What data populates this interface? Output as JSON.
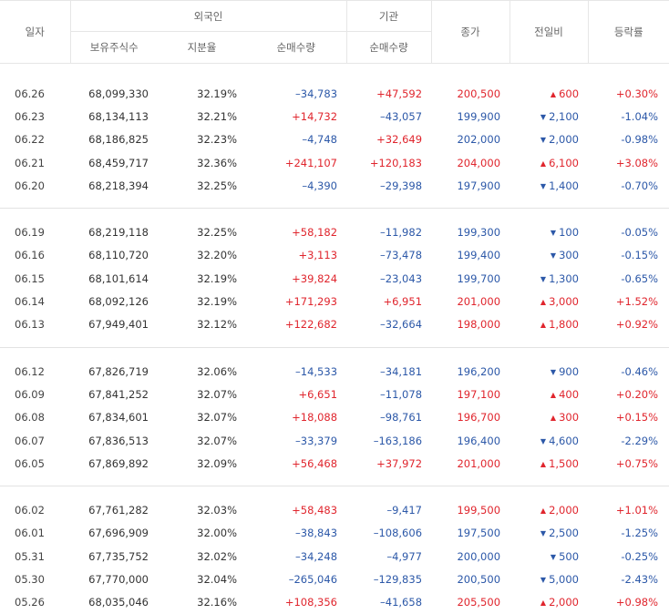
{
  "headers": {
    "date": "일자",
    "foreign": "외국인",
    "institution": "기관",
    "holdings": "보유주식수",
    "ratio": "지분율",
    "foreign_net": "순매수량",
    "inst_net": "순매수량",
    "close": "종가",
    "prev_diff": "전일비",
    "rate": "등락률"
  },
  "colors": {
    "up": "#e0252d",
    "down": "#2c58a8"
  },
  "groups": [
    [
      {
        "date": "06.26",
        "holdings": "68,099,330",
        "ratio": "32.19%",
        "fnet": "–34,783",
        "inet": "+47,592",
        "close": "200,500",
        "dir": "up",
        "diff": "600",
        "rate": "+0.30%"
      },
      {
        "date": "06.23",
        "holdings": "68,134,113",
        "ratio": "32.21%",
        "fnet": "+14,732",
        "inet": "–43,057",
        "close": "199,900",
        "dir": "down",
        "diff": "2,100",
        "rate": "-1.04%"
      },
      {
        "date": "06.22",
        "holdings": "68,186,825",
        "ratio": "32.23%",
        "fnet": "–4,748",
        "inet": "+32,649",
        "close": "202,000",
        "dir": "down",
        "diff": "2,000",
        "rate": "-0.98%"
      },
      {
        "date": "06.21",
        "holdings": "68,459,717",
        "ratio": "32.36%",
        "fnet": "+241,107",
        "inet": "+120,183",
        "close": "204,000",
        "dir": "up",
        "diff": "6,100",
        "rate": "+3.08%"
      },
      {
        "date": "06.20",
        "holdings": "68,218,394",
        "ratio": "32.25%",
        "fnet": "–4,390",
        "inet": "–29,398",
        "close": "197,900",
        "dir": "down",
        "diff": "1,400",
        "rate": "-0.70%"
      }
    ],
    [
      {
        "date": "06.19",
        "holdings": "68,219,118",
        "ratio": "32.25%",
        "fnet": "+58,182",
        "inet": "–11,982",
        "close": "199,300",
        "dir": "down",
        "diff": "100",
        "rate": "-0.05%"
      },
      {
        "date": "06.16",
        "holdings": "68,110,720",
        "ratio": "32.20%",
        "fnet": "+3,113",
        "inet": "–73,478",
        "close": "199,400",
        "dir": "down",
        "diff": "300",
        "rate": "-0.15%"
      },
      {
        "date": "06.15",
        "holdings": "68,101,614",
        "ratio": "32.19%",
        "fnet": "+39,824",
        "inet": "–23,043",
        "close": "199,700",
        "dir": "down",
        "diff": "1,300",
        "rate": "-0.65%"
      },
      {
        "date": "06.14",
        "holdings": "68,092,126",
        "ratio": "32.19%",
        "fnet": "+171,293",
        "inet": "+6,951",
        "close": "201,000",
        "dir": "up",
        "diff": "3,000",
        "rate": "+1.52%"
      },
      {
        "date": "06.13",
        "holdings": "67,949,401",
        "ratio": "32.12%",
        "fnet": "+122,682",
        "inet": "–32,664",
        "close": "198,000",
        "dir": "up",
        "diff": "1,800",
        "rate": "+0.92%"
      }
    ],
    [
      {
        "date": "06.12",
        "holdings": "67,826,719",
        "ratio": "32.06%",
        "fnet": "–14,533",
        "inet": "–34,181",
        "close": "196,200",
        "dir": "down",
        "diff": "900",
        "rate": "-0.46%"
      },
      {
        "date": "06.09",
        "holdings": "67,841,252",
        "ratio": "32.07%",
        "fnet": "+6,651",
        "inet": "–11,078",
        "close": "197,100",
        "dir": "up",
        "diff": "400",
        "rate": "+0.20%"
      },
      {
        "date": "06.08",
        "holdings": "67,834,601",
        "ratio": "32.07%",
        "fnet": "+18,088",
        "inet": "–98,761",
        "close": "196,700",
        "dir": "up",
        "diff": "300",
        "rate": "+0.15%"
      },
      {
        "date": "06.07",
        "holdings": "67,836,513",
        "ratio": "32.07%",
        "fnet": "–33,379",
        "inet": "–163,186",
        "close": "196,400",
        "dir": "down",
        "diff": "4,600",
        "rate": "-2.29%"
      },
      {
        "date": "06.05",
        "holdings": "67,869,892",
        "ratio": "32.09%",
        "fnet": "+56,468",
        "inet": "+37,972",
        "close": "201,000",
        "dir": "up",
        "diff": "1,500",
        "rate": "+0.75%"
      }
    ],
    [
      {
        "date": "06.02",
        "holdings": "67,761,282",
        "ratio": "32.03%",
        "fnet": "+58,483",
        "inet": "–9,417",
        "close": "199,500",
        "dir": "up",
        "diff": "2,000",
        "rate": "+1.01%"
      },
      {
        "date": "06.01",
        "holdings": "67,696,909",
        "ratio": "32.00%",
        "fnet": "–38,843",
        "inet": "–108,606",
        "close": "197,500",
        "dir": "down",
        "diff": "2,500",
        "rate": "-1.25%"
      },
      {
        "date": "05.31",
        "holdings": "67,735,752",
        "ratio": "32.02%",
        "fnet": "–34,248",
        "inet": "–4,977",
        "close": "200,000",
        "dir": "down",
        "diff": "500",
        "rate": "-0.25%"
      },
      {
        "date": "05.30",
        "holdings": "67,770,000",
        "ratio": "32.04%",
        "fnet": "–265,046",
        "inet": "–129,835",
        "close": "200,500",
        "dir": "down",
        "diff": "5,000",
        "rate": "-2.43%"
      },
      {
        "date": "05.26",
        "holdings": "68,035,046",
        "ratio": "32.16%",
        "fnet": "+108,356",
        "inet": "–41,658",
        "close": "205,500",
        "dir": "up",
        "diff": "2,000",
        "rate": "+0.98%"
      }
    ]
  ]
}
